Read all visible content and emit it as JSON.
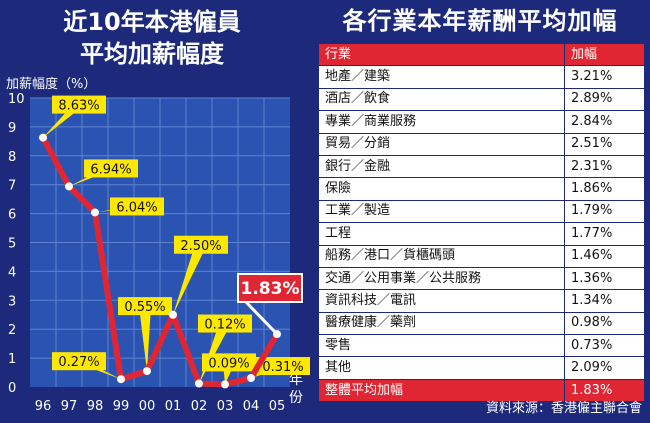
{
  "chart_data": [
    {
      "type": "line",
      "title": "近10年本港僱員平均加薪幅度",
      "title_lines": [
        "近10年本港僱員",
        "平均加薪幅度"
      ],
      "ylabel": "加薪幅度（%）",
      "xlabel": "年份",
      "xlabel_chars": [
        "年",
        "份"
      ],
      "x": [
        "96",
        "97",
        "98",
        "99",
        "00",
        "01",
        "02",
        "03",
        "04",
        "05"
      ],
      "values": [
        8.63,
        6.94,
        6.04,
        0.27,
        0.55,
        2.5,
        0.12,
        0.09,
        0.31,
        1.83
      ],
      "data_labels": [
        "8.63%",
        "6.94%",
        "6.04%",
        "0.27%",
        "0.55%",
        "2.50%",
        "0.12%",
        "0.09%",
        "0.31%",
        "1.83%"
      ],
      "highlight_label": "1.83%",
      "y_ticks": [
        "0",
        "1",
        "2",
        "3",
        "4",
        "5",
        "6",
        "7",
        "8",
        "9",
        "10"
      ],
      "ylim": [
        0,
        10
      ],
      "grid": true,
      "colors": {
        "line": "#e02633",
        "plot_bg": "#2b54b2",
        "grid": "#5e82cf",
        "label_bg": "#ffe800",
        "highlight_bg": "#e02633"
      }
    },
    {
      "type": "table",
      "title": "各行業本年薪酬平均加幅",
      "columns": [
        "行業",
        "加幅"
      ],
      "rows": [
        [
          "地產／建築",
          "3.21%"
        ],
        [
          "酒店／飲食",
          "2.89%"
        ],
        [
          "專業／商業服務",
          "2.84%"
        ],
        [
          "貿易／分銷",
          "2.51%"
        ],
        [
          "銀行／金融",
          "2.31%"
        ],
        [
          "保險",
          "1.86%"
        ],
        [
          "工業／製造",
          "1.79%"
        ],
        [
          "工程",
          "1.77%"
        ],
        [
          "船務／港口／貨櫃碼頭",
          "1.46%"
        ],
        [
          "交通／公用事業／公共服務",
          "1.36%"
        ],
        [
          "資訊科技／電訊",
          "1.34%"
        ],
        [
          "醫療健康／藥劑",
          "0.98%"
        ],
        [
          "零售",
          "0.73%"
        ],
        [
          "其他",
          "2.09%"
        ]
      ],
      "total": [
        "整體平均加幅",
        "1.83%"
      ],
      "source": "資料來源：香港僱主聯合會"
    }
  ]
}
